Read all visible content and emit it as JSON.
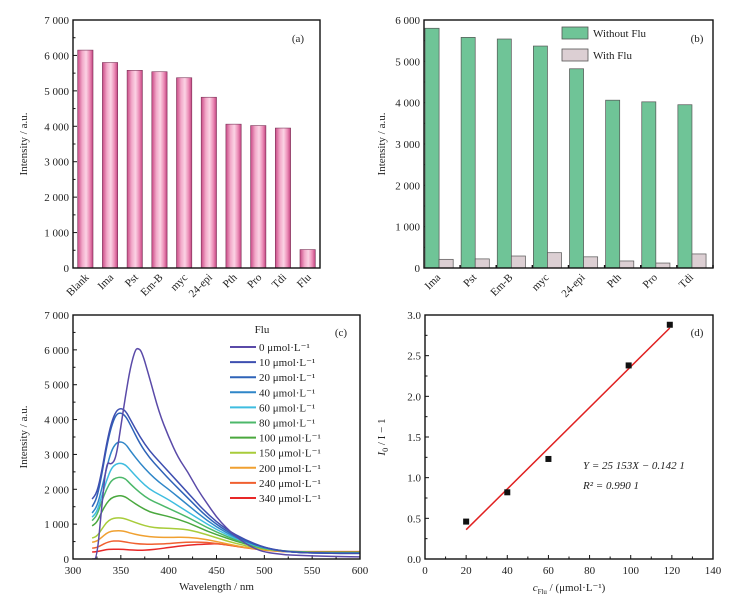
{
  "chart_data": [
    {
      "id": "a",
      "type": "bar",
      "panel_label": "(a)",
      "title": "",
      "xlabel": "",
      "ylabel": "Intensity / a.u.",
      "ylim": [
        0,
        7000
      ],
      "yticks": [
        0,
        1000,
        2000,
        3000,
        4000,
        5000,
        6000,
        7000
      ],
      "ytick_labels": [
        "0",
        "1 000",
        "2 000",
        "3 000",
        "4 000",
        "5 000",
        "6 000",
        "7 000"
      ],
      "categories": [
        "Blank",
        "Ima",
        "Pst",
        "Em-B",
        "myc",
        "24-epi",
        "Pth",
        "Pro",
        "Tdi",
        "Flu"
      ],
      "values": [
        6150,
        5800,
        5580,
        5540,
        5370,
        4820,
        4060,
        4020,
        3950,
        520
      ],
      "bar_color": "#e07ba8",
      "grid": false
    },
    {
      "id": "b",
      "type": "bar",
      "panel_label": "(b)",
      "title": "",
      "xlabel": "",
      "ylabel": "Intensity / a.u.",
      "ylim": [
        0,
        6000
      ],
      "yticks": [
        0,
        1000,
        2000,
        3000,
        4000,
        5000,
        6000
      ],
      "ytick_labels": [
        "0",
        "1 000",
        "2 000",
        "3 000",
        "4 000",
        "5 000",
        "6 000"
      ],
      "categories": [
        "Ima",
        "Pst",
        "Em-B",
        "myc",
        "24-epi",
        "Pth",
        "Pro",
        "Tdi"
      ],
      "series": [
        {
          "name": "Without Flu",
          "color": "#6fc497",
          "values": [
            5800,
            5580,
            5540,
            5370,
            4820,
            4060,
            4020,
            3950
          ]
        },
        {
          "name": "With Flu",
          "color": "#dccfd3",
          "values": [
            210,
            220,
            290,
            370,
            270,
            170,
            120,
            340
          ]
        }
      ],
      "legend_position": "top-right",
      "grid": false
    },
    {
      "id": "c",
      "type": "line",
      "panel_label": "(c)",
      "title": "",
      "xlabel": "Wavelength / nm",
      "ylabel": "Intensity / a.u.",
      "xlim": [
        300,
        600
      ],
      "ylim": [
        0,
        7000
      ],
      "xticks": [
        300,
        350,
        400,
        450,
        500,
        550,
        600
      ],
      "yticks": [
        0,
        1000,
        2000,
        3000,
        4000,
        5000,
        6000,
        7000
      ],
      "ytick_labels": [
        "0",
        "1 000",
        "2 000",
        "3 000",
        "4 000",
        "5 000",
        "6 000",
        "7 000"
      ],
      "legend_title": "Flu",
      "legend_position": "top-right",
      "grid": false,
      "series": [
        {
          "name": "0 μmol·L⁻¹",
          "color": "#5a4aa8",
          "x": [
            320,
            325,
            330,
            335,
            340,
            345,
            350,
            355,
            360,
            365,
            368,
            372,
            380,
            390,
            400,
            410,
            420,
            430,
            440,
            450,
            460,
            470,
            480,
            490,
            500,
            520,
            540,
            560,
            580,
            600
          ],
          "y": [
            0,
            0,
            1500,
            2800,
            2700,
            2900,
            3800,
            4700,
            5500,
            6000,
            6050,
            5950,
            5200,
            4200,
            3500,
            2900,
            2500,
            2000,
            1600,
            1200,
            900,
            650,
            450,
            300,
            200,
            120,
            100,
            80,
            70,
            60
          ]
        },
        {
          "name": "10 μmol·L⁻¹",
          "color": "#3e4fb0",
          "x": [
            320,
            325,
            330,
            335,
            340,
            345,
            350,
            355,
            360,
            370,
            380,
            390,
            400,
            420,
            440,
            460,
            480,
            500,
            520,
            540,
            560,
            580,
            600
          ],
          "y": [
            1720,
            1900,
            2500,
            3300,
            3900,
            4250,
            4330,
            4250,
            4000,
            3500,
            3100,
            2800,
            2500,
            1900,
            1300,
            850,
            550,
            330,
            220,
            180,
            170,
            160,
            160
          ]
        },
        {
          "name": "20 μmol·L⁻¹",
          "color": "#2f63b8",
          "x": [
            320,
            325,
            330,
            335,
            340,
            345,
            350,
            355,
            360,
            370,
            380,
            390,
            400,
            420,
            440,
            460,
            480,
            500,
            520,
            540,
            560,
            580,
            600
          ],
          "y": [
            1500,
            1750,
            2400,
            3200,
            3800,
            4150,
            4200,
            4100,
            3850,
            3300,
            2900,
            2600,
            2300,
            1750,
            1200,
            800,
            520,
            320,
            220,
            180,
            170,
            160,
            160
          ]
        },
        {
          "name": "40 μmol·L⁻¹",
          "color": "#2f86c8",
          "x": [
            320,
            325,
            330,
            335,
            340,
            345,
            350,
            355,
            360,
            370,
            380,
            390,
            400,
            420,
            440,
            460,
            480,
            500,
            520,
            540,
            560,
            580,
            600
          ],
          "y": [
            1320,
            1500,
            2000,
            2600,
            3100,
            3330,
            3370,
            3300,
            3100,
            2750,
            2450,
            2200,
            2000,
            1550,
            1100,
            750,
            500,
            320,
            220,
            180,
            170,
            170,
            170
          ]
        },
        {
          "name": "60 μmol·L⁻¹",
          "color": "#3fbde0",
          "x": [
            320,
            325,
            330,
            335,
            340,
            345,
            350,
            355,
            360,
            370,
            380,
            390,
            400,
            420,
            440,
            460,
            480,
            500,
            520,
            540,
            560,
            580,
            600
          ],
          "y": [
            1200,
            1350,
            1800,
            2250,
            2600,
            2730,
            2750,
            2700,
            2550,
            2250,
            2000,
            1850,
            1700,
            1350,
            1000,
            700,
            480,
            310,
            220,
            180,
            170,
            170,
            170
          ]
        },
        {
          "name": "80 μmol·L⁻¹",
          "color": "#4cb86a",
          "x": [
            320,
            325,
            330,
            335,
            340,
            345,
            350,
            355,
            360,
            370,
            380,
            390,
            400,
            420,
            440,
            460,
            480,
            500,
            520,
            540,
            560,
            580,
            600
          ],
          "y": [
            1100,
            1250,
            1650,
            2000,
            2250,
            2330,
            2350,
            2300,
            2150,
            1900,
            1700,
            1580,
            1450,
            1200,
            900,
            650,
            450,
            300,
            220,
            190,
            180,
            180,
            180
          ]
        },
        {
          "name": "100 μmol·L⁻¹",
          "color": "#4aa83e",
          "x": [
            320,
            325,
            330,
            335,
            340,
            345,
            350,
            355,
            360,
            370,
            380,
            390,
            400,
            420,
            440,
            460,
            480,
            500,
            520,
            540,
            560,
            580,
            600
          ],
          "y": [
            950,
            1050,
            1350,
            1600,
            1750,
            1800,
            1820,
            1780,
            1680,
            1500,
            1350,
            1280,
            1220,
            1050,
            800,
            600,
            430,
            300,
            230,
            200,
            190,
            190,
            190
          ]
        },
        {
          "name": "150 μmol·L⁻¹",
          "color": "#a8cc3a",
          "x": [
            320,
            325,
            330,
            335,
            340,
            345,
            350,
            355,
            360,
            370,
            380,
            390,
            400,
            420,
            440,
            460,
            480,
            500,
            520,
            540,
            560,
            580,
            600
          ],
          "y": [
            600,
            650,
            850,
            1050,
            1150,
            1180,
            1180,
            1150,
            1100,
            1000,
            920,
            890,
            880,
            850,
            700,
            520,
            380,
            280,
            220,
            200,
            190,
            190,
            190
          ]
        },
        {
          "name": "200 μmol·L⁻¹",
          "color": "#f0a030",
          "x": [
            320,
            325,
            330,
            335,
            340,
            345,
            350,
            355,
            360,
            370,
            380,
            390,
            400,
            420,
            440,
            460,
            480,
            500,
            520,
            540,
            560,
            580,
            600
          ],
          "y": [
            480,
            510,
            620,
            740,
            800,
            810,
            810,
            790,
            740,
            680,
            640,
            620,
            620,
            630,
            560,
            440,
            330,
            260,
            210,
            200,
            200,
            200,
            200
          ]
        },
        {
          "name": "240 μmol·L⁻¹",
          "color": "#f06030",
          "x": [
            320,
            325,
            330,
            335,
            340,
            345,
            350,
            355,
            360,
            370,
            380,
            390,
            400,
            420,
            440,
            460,
            480,
            500,
            520,
            540,
            560,
            580,
            600
          ],
          "y": [
            310,
            330,
            400,
            470,
            510,
            520,
            510,
            490,
            460,
            430,
            420,
            430,
            440,
            490,
            480,
            410,
            320,
            250,
            210,
            200,
            200,
            200,
            200
          ]
        },
        {
          "name": "340 μmol·L⁻¹",
          "color": "#e82828",
          "x": [
            320,
            325,
            330,
            335,
            340,
            345,
            350,
            355,
            360,
            370,
            380,
            390,
            400,
            420,
            440,
            450,
            460,
            480,
            500,
            520,
            540,
            560,
            580,
            600
          ],
          "y": [
            200,
            210,
            240,
            270,
            280,
            280,
            280,
            270,
            260,
            250,
            260,
            290,
            330,
            400,
            430,
            440,
            410,
            330,
            260,
            220,
            210,
            210,
            210,
            210
          ]
        }
      ]
    },
    {
      "id": "d",
      "type": "scatter",
      "panel_label": "(d)",
      "title": "",
      "xlabel": "c_Flu / (μmol·L⁻¹)",
      "xlabel_main": "c",
      "xlabel_sub": "Flu",
      "xlabel_rest": " / (μmol·L⁻¹)",
      "ylabel": "I0 / I − 1",
      "ylabel_I": "I",
      "ylabel_sub": "0",
      "ylabel_rest": " / I − 1",
      "xlim": [
        0,
        140
      ],
      "ylim": [
        0,
        3.0
      ],
      "xticks": [
        0,
        20,
        40,
        60,
        80,
        100,
        120,
        140
      ],
      "yticks": [
        0.0,
        0.5,
        1.0,
        1.5,
        2.0,
        2.5,
        3.0
      ],
      "ytick_labels": [
        "0.0",
        "0.5",
        "1.0",
        "1.5",
        "2.0",
        "2.5",
        "3.0"
      ],
      "points": {
        "x": [
          20,
          40,
          60,
          99,
          119
        ],
        "y": [
          0.46,
          0.82,
          1.23,
          2.38,
          2.88
        ]
      },
      "marker_color": "#111111",
      "fit": {
        "x": [
          20,
          119
        ],
        "y": [
          0.36,
          2.84
        ],
        "color": "#e02020"
      },
      "annotations": [
        "Y = 25 153X − 0.142 1",
        "R² = 0.990 1"
      ],
      "grid": false
    }
  ]
}
